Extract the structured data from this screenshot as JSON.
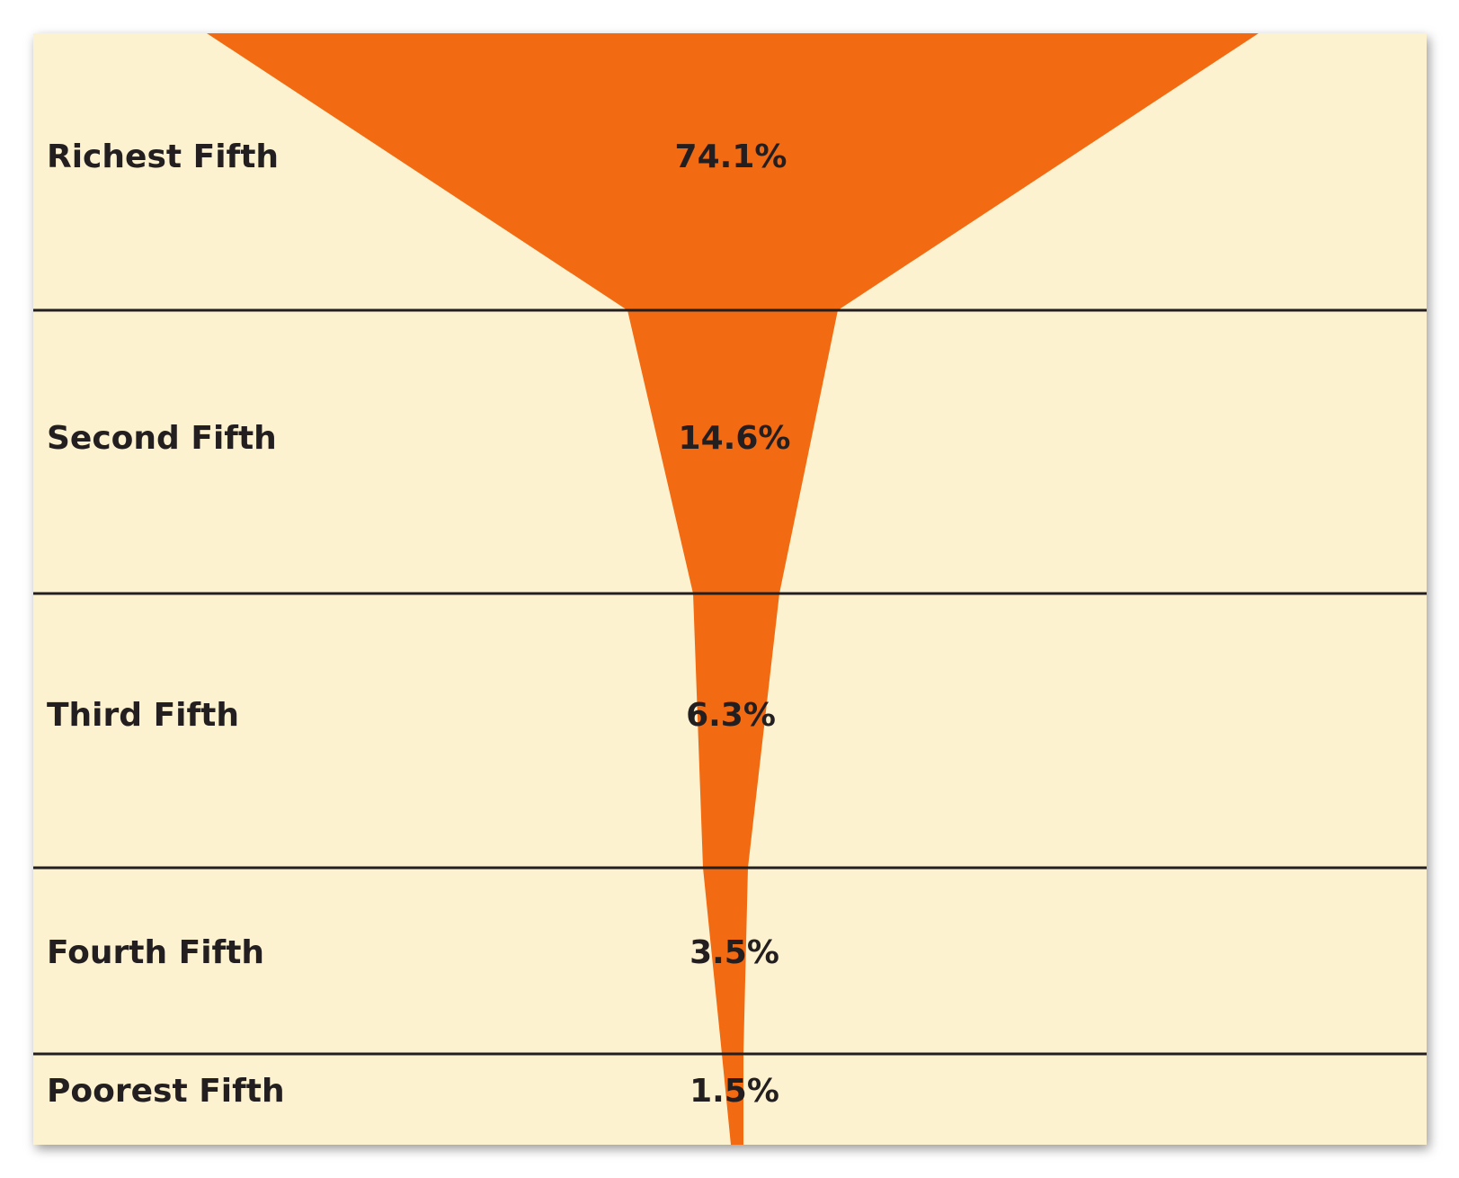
{
  "chart_data": {
    "type": "funnel",
    "categories": [
      "Richest Fifth",
      "Second Fifth",
      "Third Fifth",
      "Fourth Fifth",
      "Poorest Fifth"
    ],
    "values": [
      74.1,
      14.6,
      6.3,
      3.5,
      1.5
    ],
    "value_labels": [
      "74.1%",
      "14.6%",
      "6.3%",
      "3.5%",
      "1.5%"
    ],
    "unit": "%",
    "title": "",
    "xlabel": "",
    "ylabel": ""
  },
  "colors": {
    "background": "#fdf2cf",
    "funnel": "#f26a11",
    "divider": "#231f20",
    "text": "#231f20"
  }
}
